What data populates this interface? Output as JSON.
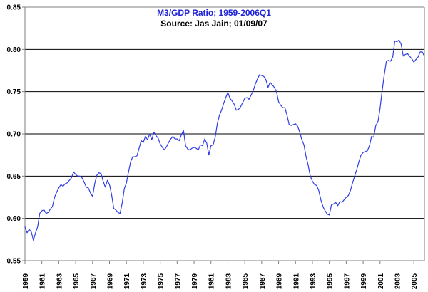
{
  "chart_data": {
    "type": "line",
    "title": "M3/GDP Ratio; 1959-2006Q1",
    "subtitle": "Source: Jas Jain; 01/09/07",
    "xlabel": "",
    "ylabel": "",
    "xlim": [
      1959.0,
      2006.25
    ],
    "ylim": [
      0.55,
      0.85
    ],
    "yticks": [
      "0.55",
      "0.60",
      "0.65",
      "0.70",
      "0.75",
      "0.80",
      "0.85"
    ],
    "xticks": [
      "1959",
      "1961",
      "1963",
      "1965",
      "1967",
      "1969",
      "1971",
      "1973",
      "1975",
      "1977",
      "1979",
      "1981",
      "1983",
      "1985",
      "1987",
      "1989",
      "1991",
      "1993",
      "1995",
      "1997",
      "1999",
      "2001",
      "2003",
      "2005"
    ],
    "grid": true,
    "legend": "none",
    "colors": {
      "title": "#1f23d6",
      "subtitle": "#000000",
      "line": "#2f3de6",
      "grid": "#000000",
      "axis": "#7f7f7f",
      "plot_border": "#7f7f7f"
    },
    "series": [
      {
        "x": [
          1959.0,
          1959.25,
          1959.5,
          1959.75,
          1960.0,
          1960.25,
          1960.5,
          1960.75,
          1961.0,
          1961.25,
          1961.5,
          1961.75,
          1962.0,
          1962.25,
          1962.5,
          1962.75,
          1963.0,
          1963.25,
          1963.5,
          1963.75,
          1964.0,
          1964.25,
          1964.5,
          1964.75,
          1965.0,
          1965.25,
          1965.5,
          1965.75,
          1966.0,
          1966.25,
          1966.5,
          1966.75,
          1967.0,
          1967.25,
          1967.5,
          1967.75,
          1968.0,
          1968.25,
          1968.5,
          1968.75,
          1969.0,
          1969.25,
          1969.5,
          1969.75,
          1970.0,
          1970.25,
          1970.5,
          1970.75,
          1971.0,
          1971.25,
          1971.5,
          1971.75,
          1972.0,
          1972.25,
          1972.5,
          1972.75,
          1973.0,
          1973.25,
          1973.5,
          1973.75,
          1974.0,
          1974.25,
          1974.5,
          1974.75,
          1975.0,
          1975.25,
          1975.5,
          1975.75,
          1976.0,
          1976.25,
          1976.5,
          1976.75,
          1977.0,
          1977.25,
          1977.5,
          1977.75,
          1978.0,
          1978.25,
          1978.5,
          1978.75,
          1979.0,
          1979.25,
          1979.5,
          1979.75,
          1980.0,
          1980.25,
          1980.5,
          1980.75,
          1981.0,
          1981.25,
          1981.5,
          1981.75,
          1982.0,
          1982.25,
          1982.5,
          1982.75,
          1983.0,
          1983.25,
          1983.5,
          1983.75,
          1984.0,
          1984.25,
          1984.5,
          1984.75,
          1985.0,
          1985.25,
          1985.5,
          1985.75,
          1986.0,
          1986.25,
          1986.5,
          1986.75,
          1987.0,
          1987.25,
          1987.5,
          1987.75,
          1988.0,
          1988.25,
          1988.5,
          1988.75,
          1989.0,
          1989.25,
          1989.5,
          1989.75,
          1990.0,
          1990.25,
          1990.5,
          1990.75,
          1991.0,
          1991.25,
          1991.5,
          1991.75,
          1992.0,
          1992.25,
          1992.5,
          1992.75,
          1993.0,
          1993.25,
          1993.5,
          1993.75,
          1994.0,
          1994.25,
          1994.5,
          1994.75,
          1995.0,
          1995.25,
          1995.5,
          1995.75,
          1996.0,
          1996.25,
          1996.5,
          1996.75,
          1997.0,
          1997.25,
          1997.5,
          1997.75,
          1998.0,
          1998.25,
          1998.5,
          1998.75,
          1999.0,
          1999.25,
          1999.5,
          1999.75,
          2000.0,
          2000.25,
          2000.5,
          2000.75,
          2001.0,
          2001.25,
          2001.5,
          2001.75,
          2002.0,
          2002.25,
          2002.5,
          2002.75,
          2003.0,
          2003.25,
          2003.5,
          2003.75,
          2004.0,
          2004.25,
          2004.5,
          2004.75,
          2005.0,
          2005.25,
          2005.5,
          2005.75,
          2006.0,
          2006.25
        ],
        "y": [
          0.59,
          0.583,
          0.587,
          0.584,
          0.574,
          0.583,
          0.59,
          0.606,
          0.609,
          0.61,
          0.606,
          0.607,
          0.611,
          0.614,
          0.625,
          0.631,
          0.636,
          0.64,
          0.638,
          0.641,
          0.642,
          0.645,
          0.648,
          0.655,
          0.652,
          0.65,
          0.65,
          0.648,
          0.643,
          0.637,
          0.636,
          0.63,
          0.626,
          0.641,
          0.651,
          0.654,
          0.653,
          0.644,
          0.637,
          0.645,
          0.64,
          0.628,
          0.612,
          0.61,
          0.607,
          0.606,
          0.618,
          0.635,
          0.642,
          0.655,
          0.667,
          0.673,
          0.673,
          0.674,
          0.683,
          0.692,
          0.69,
          0.697,
          0.693,
          0.7,
          0.693,
          0.702,
          0.698,
          0.695,
          0.688,
          0.684,
          0.681,
          0.685,
          0.69,
          0.694,
          0.697,
          0.694,
          0.694,
          0.692,
          0.699,
          0.704,
          0.686,
          0.682,
          0.681,
          0.683,
          0.684,
          0.683,
          0.681,
          0.687,
          0.686,
          0.694,
          0.689,
          0.675,
          0.686,
          0.687,
          0.696,
          0.712,
          0.722,
          0.728,
          0.736,
          0.743,
          0.749,
          0.742,
          0.739,
          0.735,
          0.728,
          0.729,
          0.732,
          0.737,
          0.742,
          0.743,
          0.741,
          0.746,
          0.751,
          0.759,
          0.765,
          0.77,
          0.769,
          0.768,
          0.764,
          0.755,
          0.761,
          0.758,
          0.755,
          0.75,
          0.738,
          0.734,
          0.731,
          0.731,
          0.722,
          0.711,
          0.71,
          0.711,
          0.712,
          0.709,
          0.702,
          0.693,
          0.687,
          0.673,
          0.663,
          0.65,
          0.644,
          0.64,
          0.639,
          0.633,
          0.622,
          0.614,
          0.609,
          0.605,
          0.604,
          0.616,
          0.617,
          0.619,
          0.615,
          0.62,
          0.619,
          0.622,
          0.625,
          0.627,
          0.633,
          0.642,
          0.65,
          0.658,
          0.667,
          0.675,
          0.678,
          0.679,
          0.68,
          0.686,
          0.697,
          0.696,
          0.71,
          0.714,
          0.73,
          0.751,
          0.77,
          0.786,
          0.787,
          0.786,
          0.791,
          0.81,
          0.809,
          0.811,
          0.806,
          0.792,
          0.794,
          0.795,
          0.792,
          0.789,
          0.785,
          0.788,
          0.791,
          0.797,
          0.797,
          0.792
        ]
      }
    ]
  }
}
